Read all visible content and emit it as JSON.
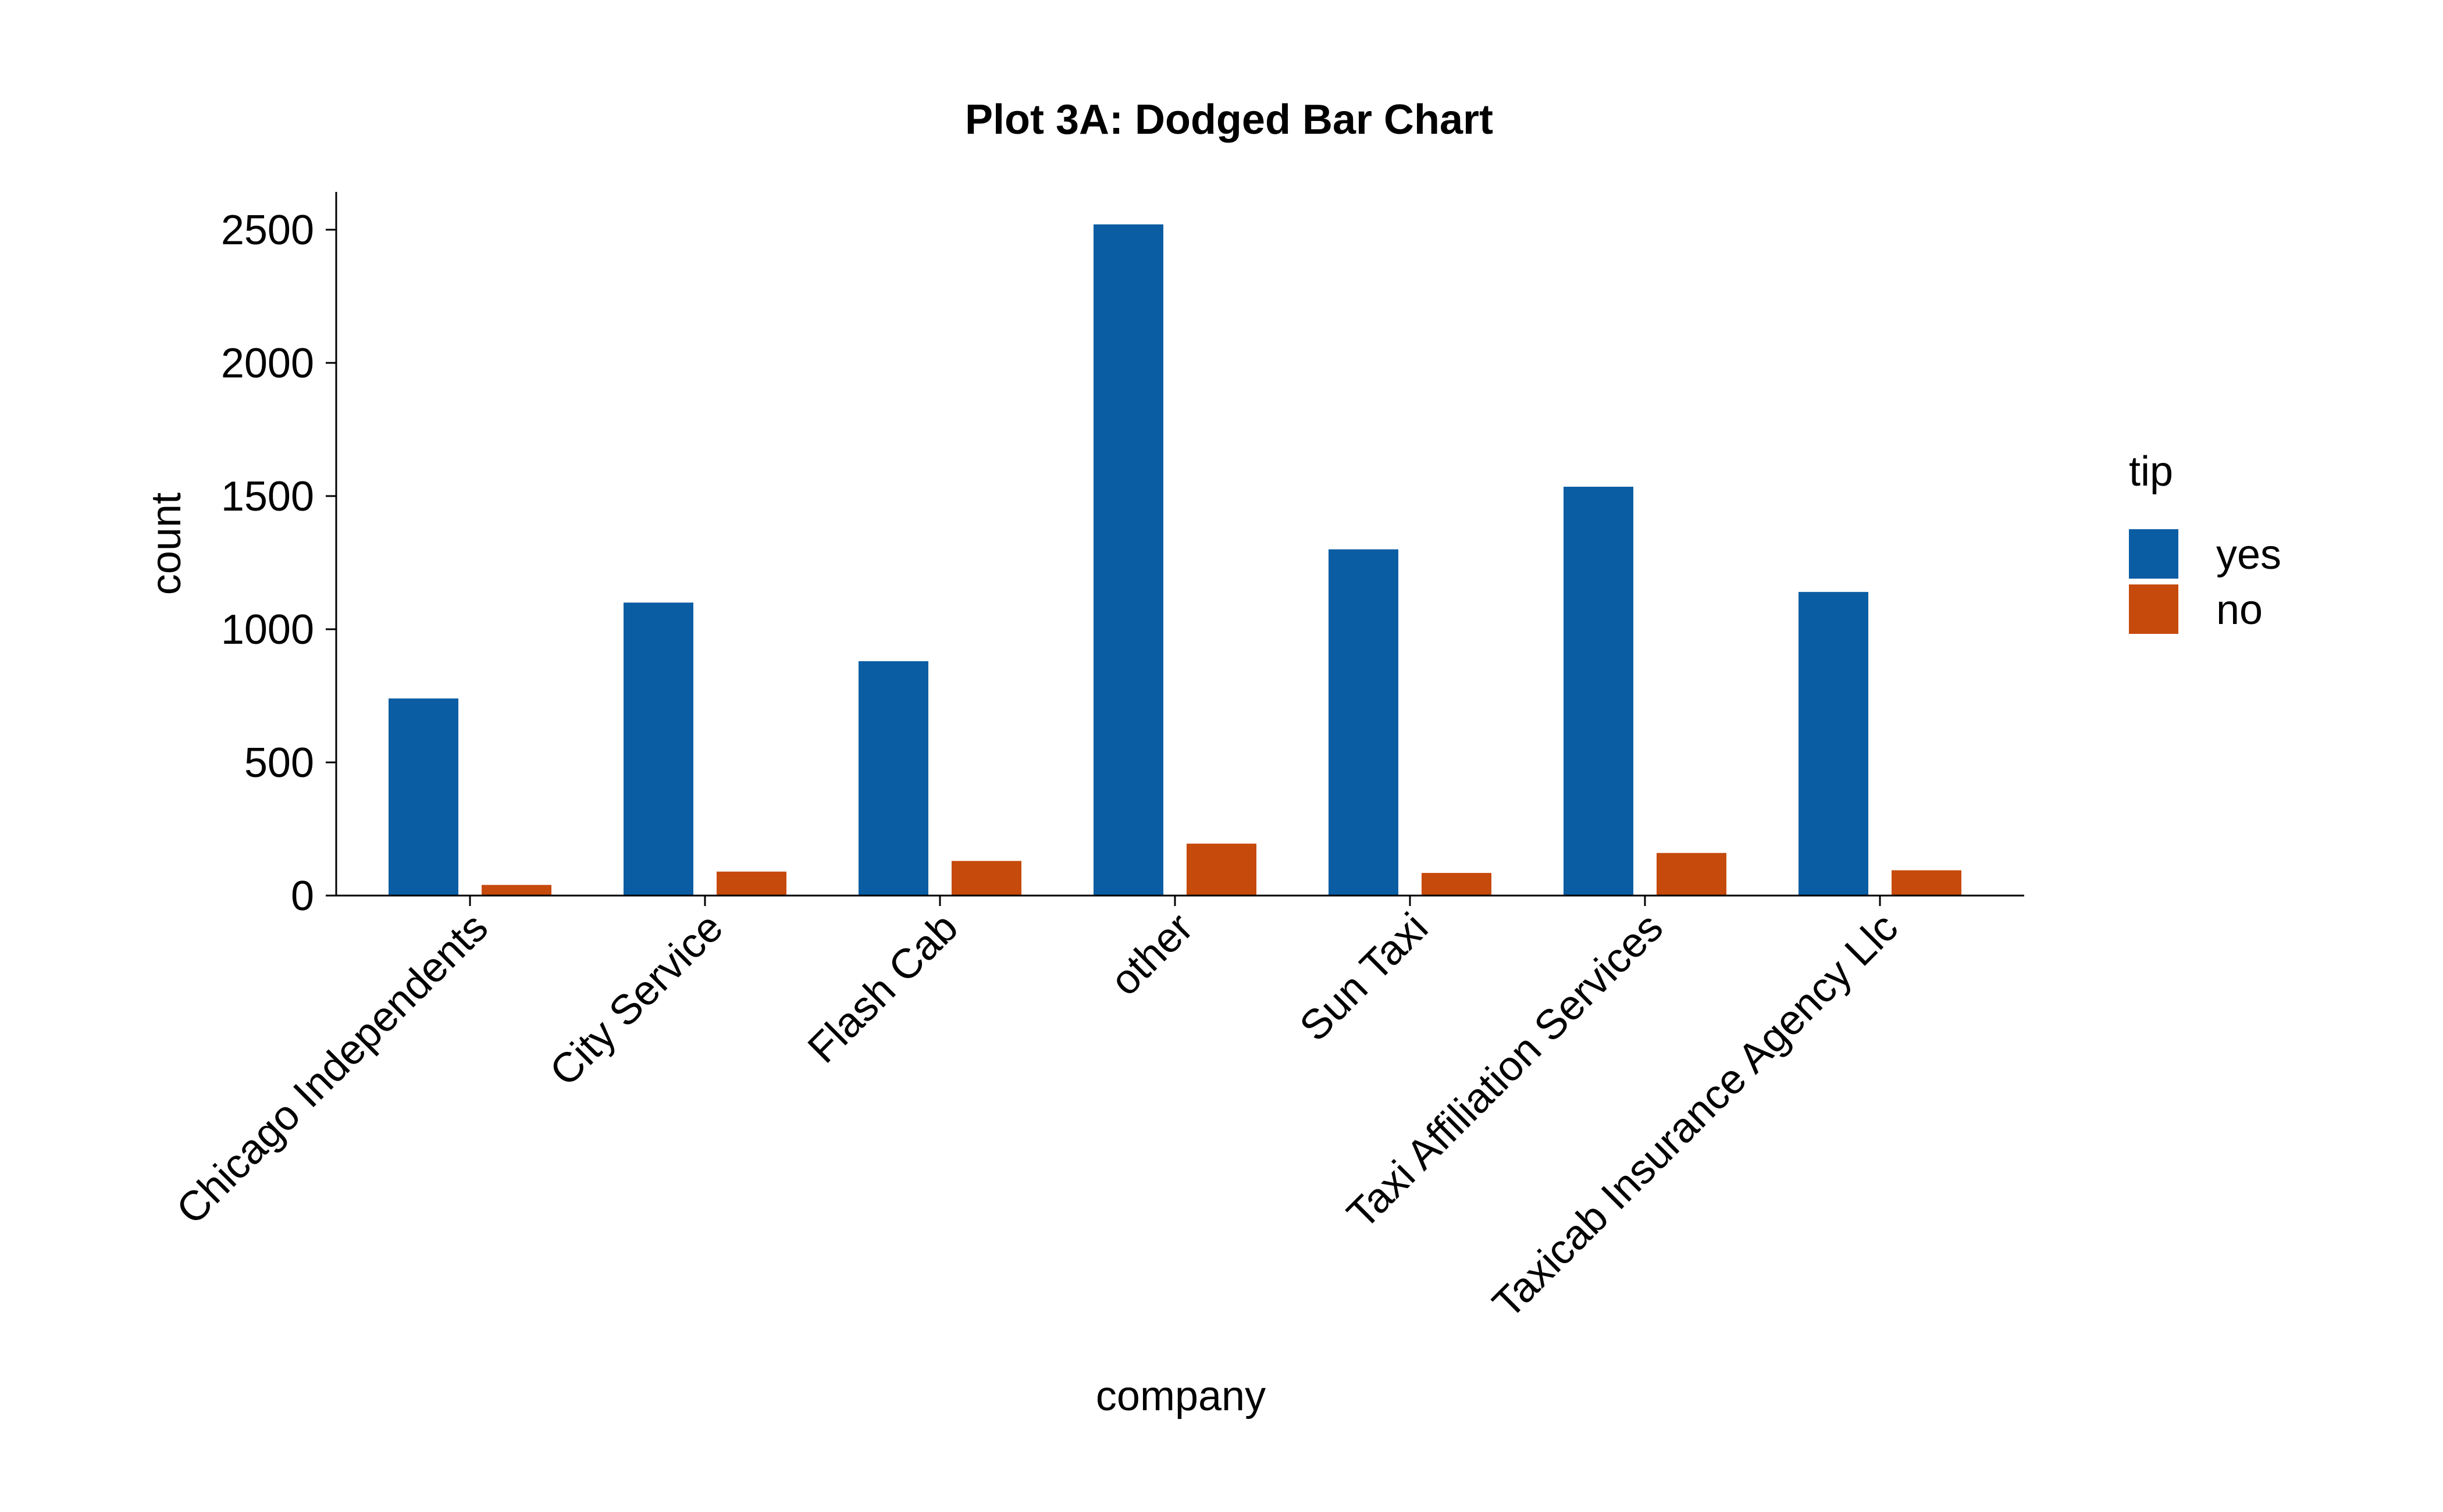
{
  "chart_data": {
    "type": "bar",
    "title": "Plot 3A: Dodged Bar Chart",
    "xlabel": "company",
    "ylabel": "count",
    "categories": [
      "Chicago Independents",
      "City Service",
      "Flash Cab",
      "other",
      "Sun Taxi",
      "Taxi Affiliation Services",
      "Taxicab Insurance Agency Llc"
    ],
    "series": [
      {
        "name": "yes",
        "color": "#0b5da3",
        "values": [
          740,
          1100,
          880,
          2520,
          1300,
          1535,
          1140
        ]
      },
      {
        "name": "no",
        "color": "#c64a0c",
        "values": [
          40,
          90,
          130,
          195,
          85,
          160,
          95
        ]
      }
    ],
    "ylim": [
      0,
      2640
    ],
    "yticks": [
      0,
      500,
      1000,
      1500,
      2000,
      2500
    ],
    "legend": {
      "title": "tip",
      "position": "right"
    },
    "grid": false
  }
}
